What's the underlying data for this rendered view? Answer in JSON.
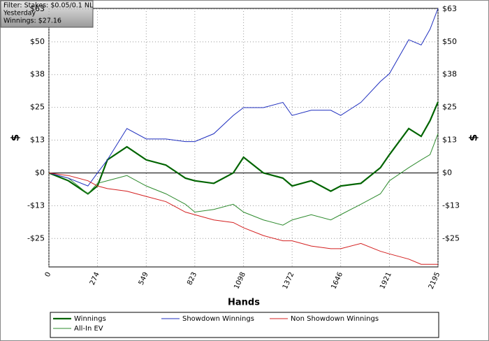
{
  "filter_box": {
    "lines": [
      "Filter: Stakes: $0.05/0.1 NL",
      "Yesterday",
      "Winnings: $27.16"
    ]
  },
  "chart_data": {
    "type": "line",
    "x_label": "Hands",
    "y_label": "$",
    "x": [
      0,
      110,
      220,
      274,
      330,
      440,
      549,
      660,
      770,
      823,
      930,
      1040,
      1098,
      1210,
      1320,
      1372,
      1480,
      1590,
      1646,
      1760,
      1870,
      1921,
      2030,
      2100,
      2150,
      2195
    ],
    "xlim": [
      0,
      2195
    ],
    "xticks": [
      0,
      274,
      549,
      823,
      1098,
      1372,
      1646,
      1921,
      2195
    ],
    "ylim": [
      -36,
      63
    ],
    "yticks": [
      {
        "value": -25.1,
        "label": "-$25"
      },
      {
        "value": -12.55,
        "label": "-$13"
      },
      {
        "value": 0,
        "label": "$0"
      },
      {
        "value": 12.55,
        "label": "$13"
      },
      {
        "value": 25.1,
        "label": "$25"
      },
      {
        "value": 37.65,
        "label": "$38"
      },
      {
        "value": 50.2,
        "label": "$50"
      },
      {
        "value": 62.75,
        "label": "$63"
      }
    ],
    "grid": true,
    "series": [
      {
        "name": "Winnings",
        "color": "#006400",
        "values": [
          0,
          -3,
          -8,
          -5,
          5,
          10,
          5,
          3,
          -2,
          -3,
          -4,
          0,
          6,
          0,
          -2,
          -5,
          -3,
          -7,
          -5,
          -4,
          2,
          7,
          17,
          14,
          20,
          27.16
        ]
      },
      {
        "name": "All-In EV",
        "color": "#2e8b2e",
        "values": [
          0,
          -2,
          -8,
          -4,
          -3,
          -1,
          -5,
          -8,
          -12,
          -15,
          -14,
          -12,
          -15,
          -18,
          -20,
          -18,
          -16,
          -18,
          -16,
          -12,
          -8,
          -3,
          2,
          5,
          7,
          15
        ]
      },
      {
        "name": "Showdown Winnings",
        "color": "#1f2fbf",
        "values": [
          0,
          -2,
          -5,
          0,
          5,
          17,
          13,
          13,
          12,
          12,
          15,
          22,
          25,
          25,
          27,
          22,
          24,
          24,
          22,
          27,
          35,
          38,
          51,
          49,
          55,
          63
        ]
      },
      {
        "name": "Non Showdown Winnings",
        "color": "#d42020",
        "values": [
          0,
          -1,
          -3,
          -5,
          -6,
          -7,
          -9,
          -11,
          -15,
          -16,
          -18,
          -19,
          -21,
          -24,
          -26,
          -26,
          -28,
          -29,
          -29,
          -27,
          -30,
          -31,
          -33,
          -35,
          -35,
          -35
        ]
      }
    ]
  }
}
